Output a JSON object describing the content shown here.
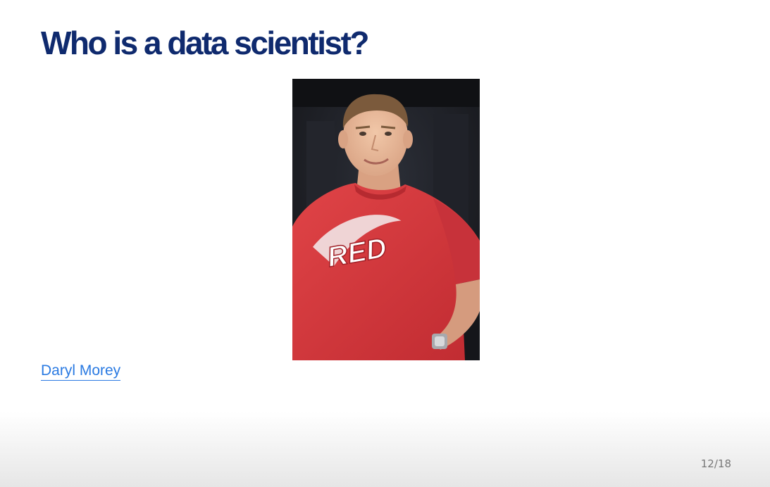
{
  "slide": {
    "title": "Who is a data scientist?",
    "caption_link": "Daryl Morey",
    "page_number": "12/18"
  },
  "photo": {
    "subject": "man in red t-shirt",
    "shirt_text": "RED"
  },
  "colors": {
    "title": "#0f2a6e",
    "link": "#2a7ae2",
    "page_number": "#777777",
    "shirt": "#d8383a"
  }
}
